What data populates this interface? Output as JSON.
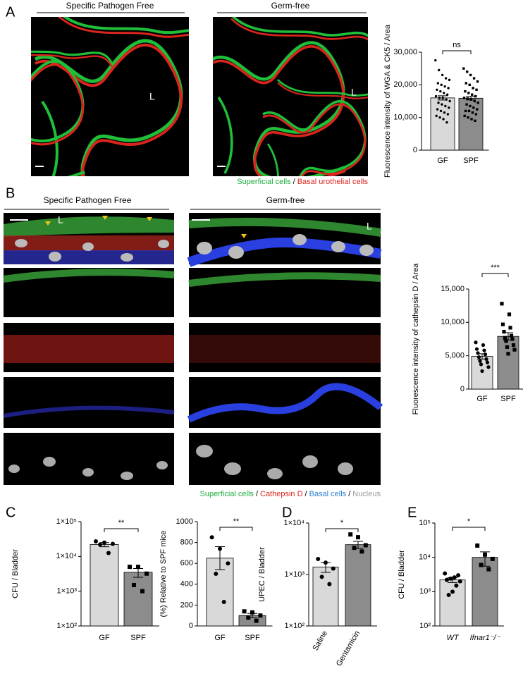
{
  "figure": {
    "A": {
      "letter": "A",
      "headers": [
        "Specific Pathogen Free",
        "Germ-free"
      ],
      "lumen": [
        "L",
        "L"
      ],
      "legend": [
        "Superficial cells",
        "Basal urothelial cells"
      ],
      "separator": "/"
    },
    "B": {
      "letter": "B",
      "headers": [
        "Specific Pathogen Free",
        "Germ-free"
      ],
      "lumen": [
        "L",
        "L"
      ],
      "legend": [
        "Superficial cells",
        "Cathepsin D",
        "Basal cells",
        "Nucleus"
      ],
      "separator": "/"
    },
    "C": {
      "letter": "C"
    },
    "D": {
      "letter": "D"
    },
    "E": {
      "letter": "E"
    }
  },
  "chart_data": [
    {
      "type": "bar",
      "ylabel": "Fluorescence intensity of WGA & CK5 / Area",
      "categories": [
        "GF",
        "SPF"
      ],
      "values": [
        16000,
        15900
      ],
      "errors": [
        650,
        550
      ],
      "colors": [
        "#d9d9d9",
        "#8c8c8c"
      ],
      "points": [
        [
          27500,
          24500,
          23000,
          22000,
          21500,
          20500,
          20000,
          19500,
          19000,
          18500,
          18000,
          17500,
          17000,
          16500,
          16000,
          16000,
          15500,
          15000,
          14500,
          14000,
          13500,
          13000,
          12500,
          12000,
          11500,
          11000,
          10500,
          10000,
          9500,
          8500
        ],
        [
          25000,
          24000,
          23000,
          22000,
          21000,
          20500,
          20000,
          19000,
          18500,
          18000,
          17500,
          17000,
          16500,
          16000,
          15800,
          15500,
          15000,
          14500,
          14000,
          13500,
          13000,
          12500,
          12000,
          12000,
          11500,
          11000,
          10500,
          10000,
          9500,
          9000
        ]
      ],
      "annotation": "ns",
      "ylim": [
        0,
        30000
      ],
      "yticks": [
        0,
        {
          "value": 10000,
          "label": "10,000"
        },
        {
          "value": 20000,
          "label": "20,000"
        },
        {
          "value": 30000,
          "label": "30,000"
        }
      ]
    },
    {
      "type": "bar",
      "ylabel": "Fluorescence intensity of cathepsin D / Area",
      "categories": [
        "GF",
        "SPF"
      ],
      "values": [
        4900,
        7900
      ],
      "errors": [
        400,
        550
      ],
      "colors": [
        "#d9d9d9",
        "#8c8c8c"
      ],
      "points": [
        [
          7000,
          6600,
          6000,
          5800,
          5400,
          5200,
          4800,
          4500,
          4200,
          4000,
          3700,
          3300,
          2700
        ],
        [
          12800,
          11200,
          9700,
          9200,
          8600,
          8000,
          7700,
          7500,
          7200,
          6600,
          6300,
          5900,
          5300
        ]
      ],
      "annotation": "***",
      "ylim": [
        0,
        15000
      ],
      "yticks": [
        0,
        {
          "value": 5000,
          "label": "5,000"
        },
        {
          "value": 10000,
          "label": "10,000"
        },
        {
          "value": 15000,
          "label": "15,000"
        }
      ]
    },
    {
      "type": "bar",
      "log": true,
      "ylabel": "CFU / Bladder",
      "categories": [
        "GF",
        "SPF"
      ],
      "values": [
        22000,
        3500
      ],
      "errors": [
        3000,
        1000
      ],
      "colors": [
        "#d9d9d9",
        "#8c8c8c"
      ],
      "points": [
        [
          27000,
          25000,
          23000,
          22000,
          12500
        ],
        [
          5000,
          5000,
          3200,
          1500,
          1000
        ]
      ],
      "annotation": "**",
      "ylim": [
        100,
        100000
      ],
      "yticks": [
        {
          "value": 100,
          "label": "1×10²"
        },
        {
          "value": 1000,
          "label": "1×10³"
        },
        {
          "value": 10000,
          "label": "1×10⁴"
        },
        {
          "value": 100000,
          "label": "1×10⁵"
        }
      ]
    },
    {
      "type": "bar",
      "ylabel": "(%) Relative to SPF mice",
      "categories": [
        "GF",
        "SPF"
      ],
      "values": [
        650,
        100
      ],
      "errors": [
        110,
        20
      ],
      "colors": [
        "#d9d9d9",
        "#8c8c8c"
      ],
      "points": [
        [
          850,
          740,
          600,
          500,
          230
        ],
        [
          140,
          130,
          100,
          80,
          50
        ]
      ],
      "annotation": "**",
      "ylim": [
        0,
        1000
      ],
      "yticks": [
        0,
        200,
        400,
        600,
        800,
        1000
      ]
    },
    {
      "type": "bar",
      "log": true,
      "ylabel": "UPEC / Bladder",
      "categories": [
        "Saline",
        "Gentamicin"
      ],
      "values": [
        1400,
        3800
      ],
      "errors": [
        300,
        600
      ],
      "colors": [
        "#d9d9d9",
        "#8c8c8c"
      ],
      "points": [
        [
          2000,
          1700,
          1300,
          900,
          650
        ],
        [
          6000,
          5300,
          3700,
          3300,
          2800
        ]
      ],
      "annotation": "*",
      "ylim": [
        100,
        10000
      ],
      "yticks": [
        {
          "value": 100,
          "label": "1×10²"
        },
        {
          "value": 1000,
          "label": "1×10³"
        },
        {
          "value": 10000,
          "label": "1×10⁴"
        }
      ]
    },
    {
      "type": "bar",
      "log": true,
      "ylabel": "CFU / Bladder",
      "categories": [
        "WT",
        "Ifnar1⁻/⁻"
      ],
      "values": [
        2200,
        10000
      ],
      "errors": [
        350,
        4500
      ],
      "colors": [
        "#d9d9d9",
        "#8c8c8c"
      ],
      "points": [
        [
          3400,
          3000,
          2600,
          2400,
          2200,
          2000,
          1500,
          1000,
          800
        ],
        [
          22000,
          12000,
          9000,
          6000,
          4500
        ]
      ],
      "annotation": "*",
      "ylim": [
        100,
        100000
      ],
      "yticks": [
        {
          "value": 100,
          "label": "10²"
        },
        {
          "value": 1000,
          "label": "10³"
        },
        {
          "value": 10000,
          "label": "10⁴"
        },
        {
          "value": 100000,
          "label": "10⁵"
        }
      ]
    }
  ]
}
